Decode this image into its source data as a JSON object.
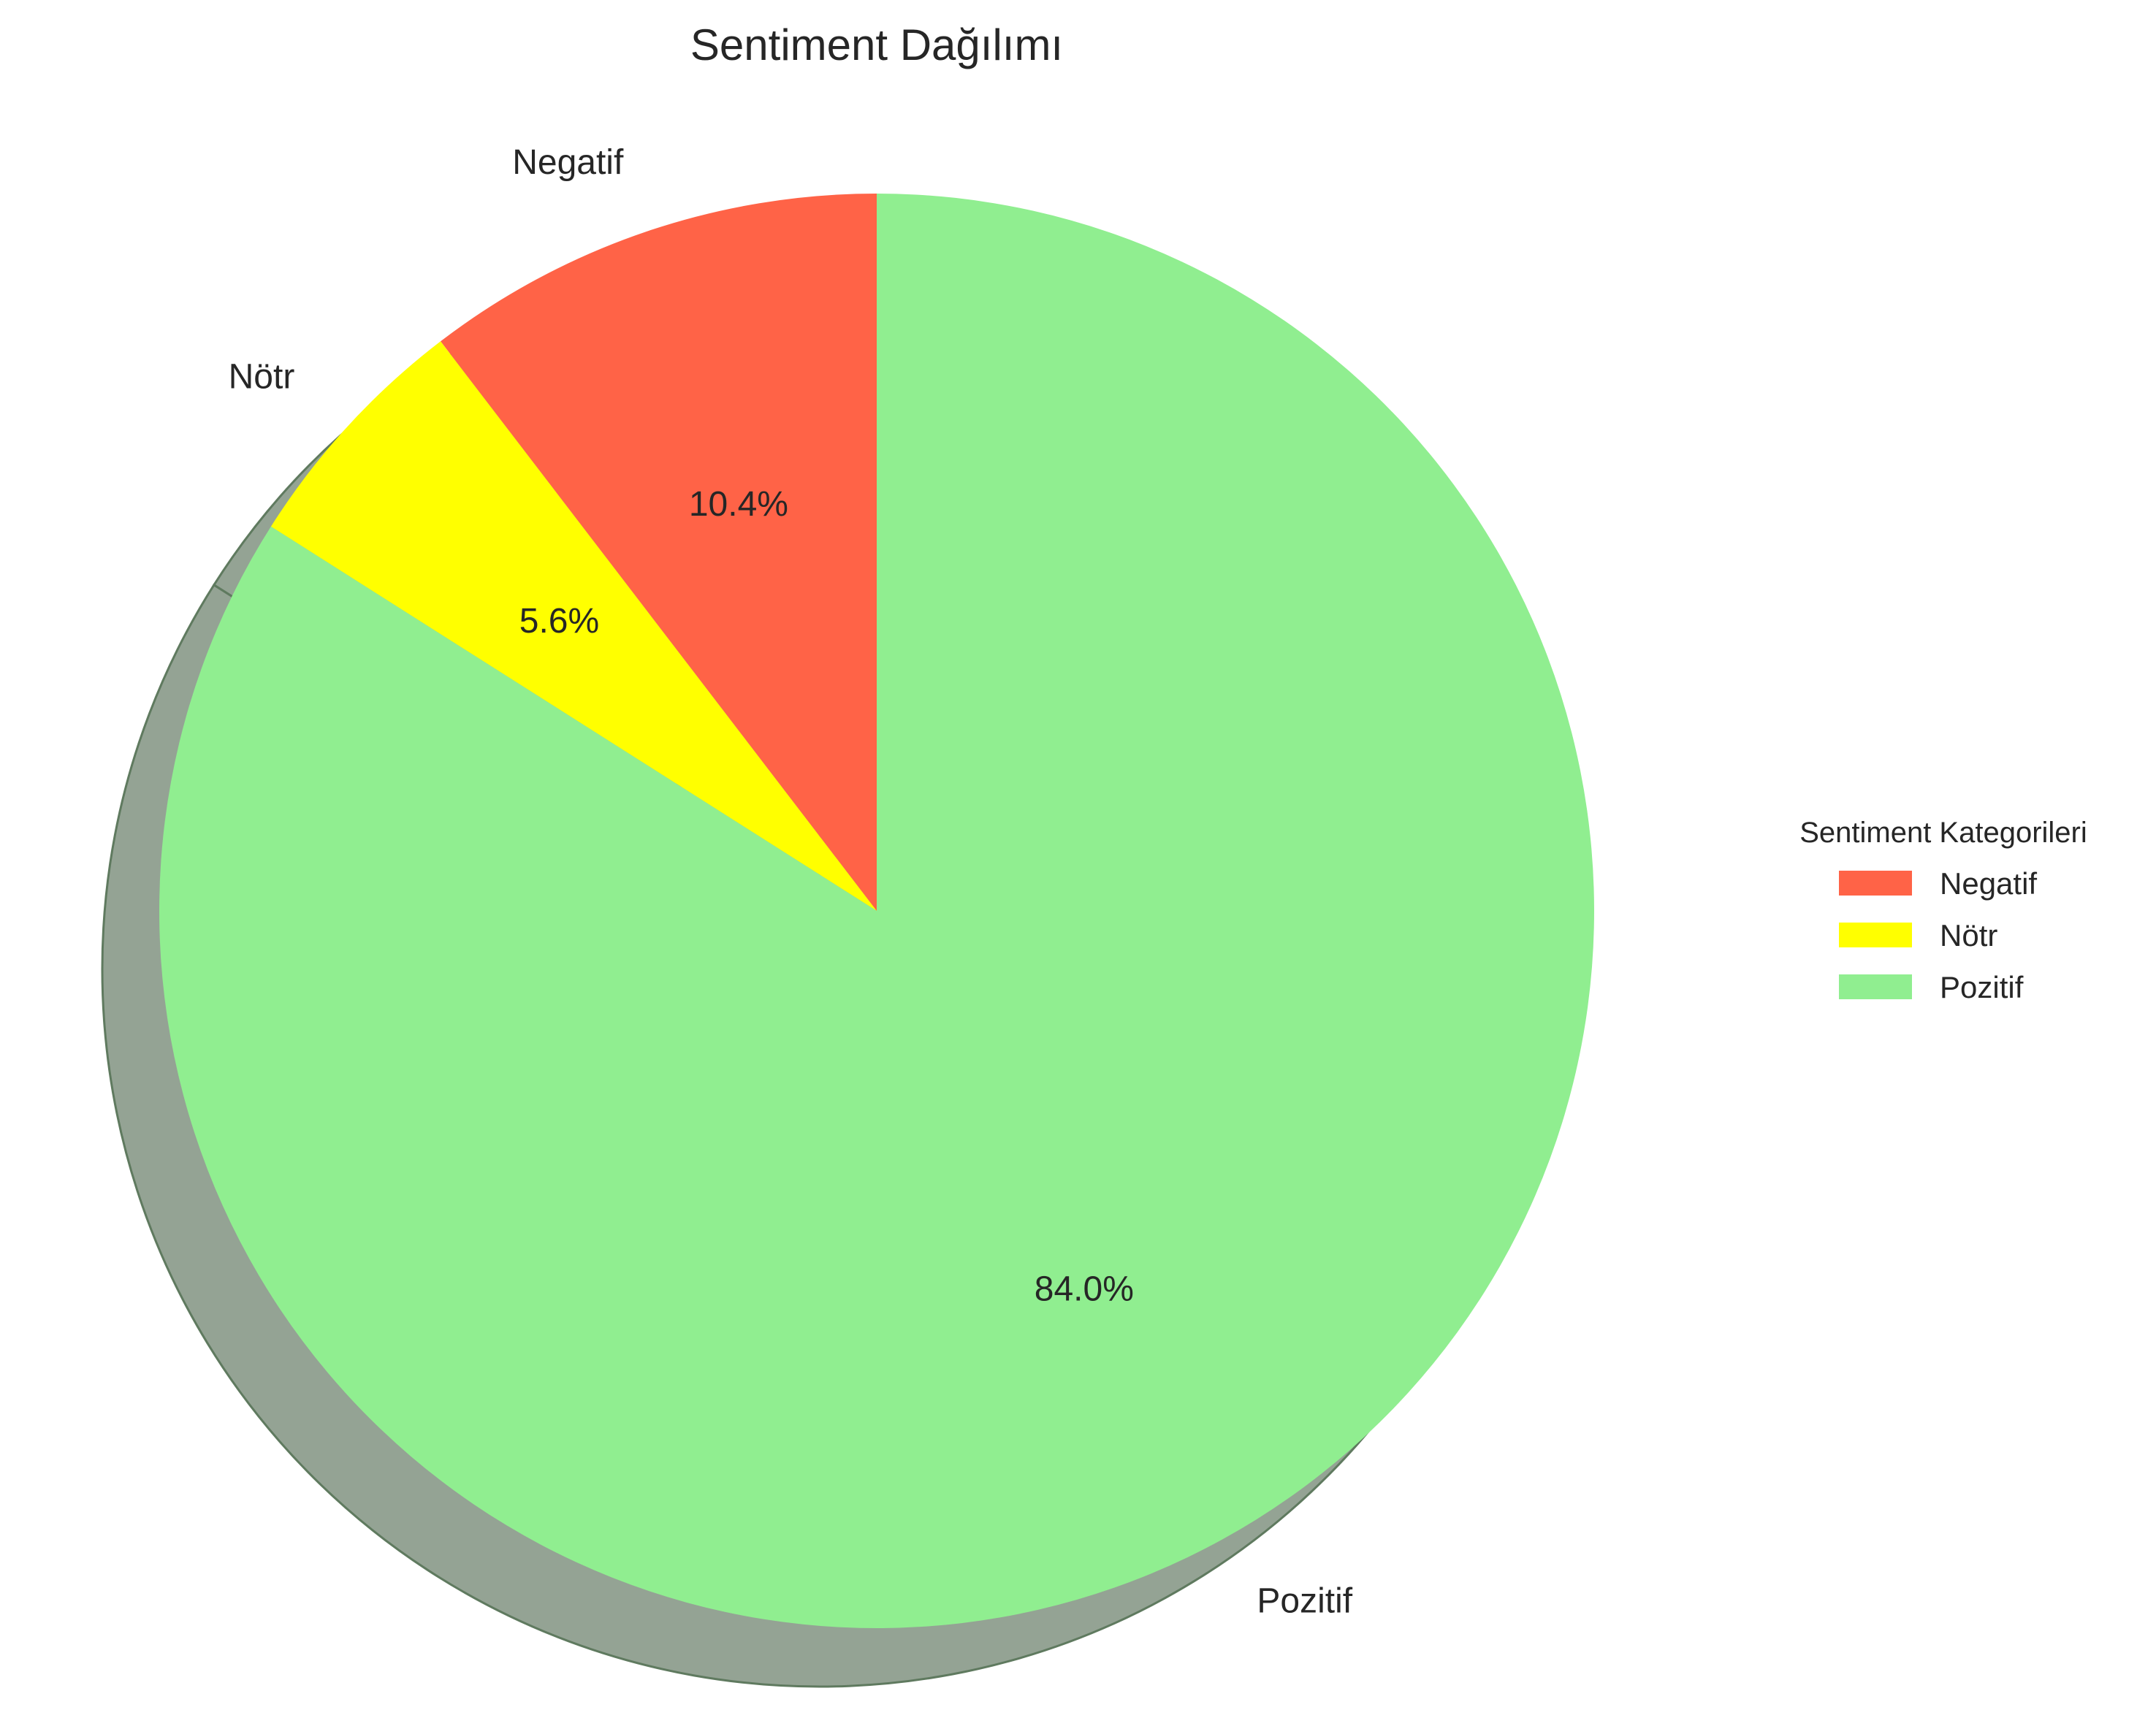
{
  "chart_data": {
    "type": "pie",
    "title": "Sentiment Dağılımı",
    "categories": [
      "Negatif",
      "Nötr",
      "Pozitif"
    ],
    "values": [
      10.4,
      5.6,
      84.0
    ],
    "percent_labels": [
      "10.4%",
      "5.6%",
      "84.0%"
    ],
    "colors": [
      "#ff6347",
      "#ffff00",
      "#90ee90"
    ],
    "start_angle": 90,
    "direction": "counterclockwise",
    "shadow": true,
    "shadow_color": "#94a394",
    "legend": {
      "title": "Sentiment Kategorileri",
      "placement": "center-right",
      "entries": [
        "Negatif",
        "Nötr",
        "Pozitif"
      ]
    }
  }
}
